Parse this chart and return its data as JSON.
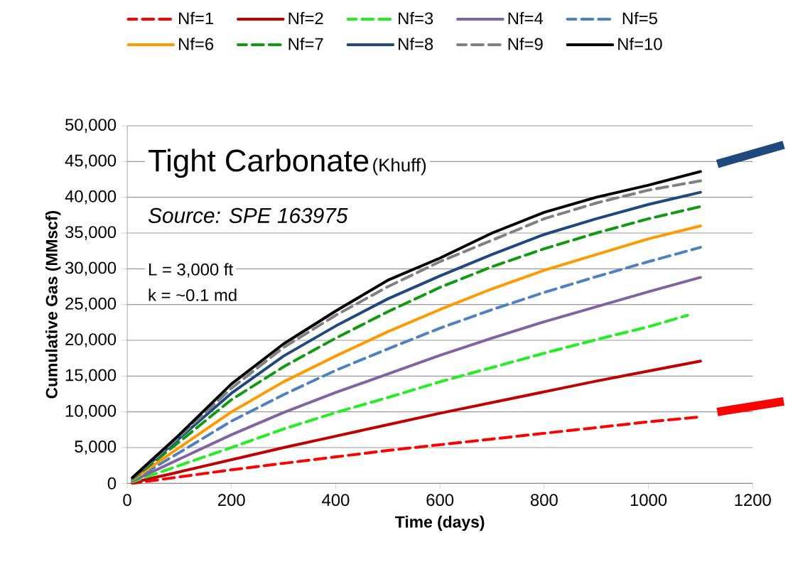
{
  "chart_data": {
    "type": "line",
    "xlabel": "Time (days)",
    "ylabel": "Cumulative Gas (MMscf)",
    "x": [
      10,
      100,
      200,
      300,
      400,
      500,
      600,
      700,
      800,
      900,
      1000,
      1100
    ],
    "series": [
      {
        "name": "Nf=1",
        "color": "#ff0000",
        "line_style": "dashed",
        "values": [
          0,
          900,
          1900,
          2800,
          3700,
          4600,
          5400,
          6200,
          7000,
          7800,
          8600,
          9300
        ]
      },
      {
        "name": "Nf=2",
        "color": "#c00000",
        "line_style": "solid",
        "values": [
          100,
          1600,
          3300,
          5000,
          6600,
          8200,
          9800,
          11300,
          12800,
          14300,
          15700,
          17100
        ]
      },
      {
        "name": "Nf=3",
        "color": "#22ee22",
        "line_style": "dashed",
        "x": [
          10,
          100,
          200,
          300,
          400,
          500,
          600,
          700,
          800,
          900,
          1000,
          1075
        ],
        "values": [
          200,
          2500,
          5000,
          7600,
          9900,
          12000,
          14200,
          16200,
          18200,
          20100,
          21900,
          23500
        ]
      },
      {
        "name": "Nf=4",
        "color": "#8064a2",
        "line_style": "solid",
        "values": [
          300,
          3400,
          6800,
          9900,
          12700,
          15300,
          17900,
          20300,
          22600,
          24700,
          26800,
          28800
        ]
      },
      {
        "name": "Nf=5",
        "color": "#4f81bd",
        "line_style": "dashed",
        "values": [
          400,
          4300,
          8700,
          12400,
          15800,
          18800,
          21700,
          24300,
          26700,
          28900,
          31000,
          33000
        ]
      },
      {
        "name": "Nf=6",
        "color": "#ff9900",
        "line_style": "solid",
        "values": [
          500,
          5000,
          10000,
          14200,
          17800,
          21200,
          24300,
          27200,
          29800,
          32000,
          34200,
          36000
        ]
      },
      {
        "name": "Nf=7",
        "color": "#119911",
        "line_style": "dashed",
        "values": [
          600,
          5800,
          11700,
          16300,
          20300,
          24000,
          27400,
          30300,
          32800,
          35000,
          37000,
          38700
        ]
      },
      {
        "name": "Nf=8",
        "color": "#1f497d",
        "line_style": "solid",
        "values": [
          700,
          6300,
          12600,
          17800,
          22000,
          25800,
          29000,
          32000,
          34800,
          37000,
          39000,
          40700
        ]
      },
      {
        "name": "Nf=9",
        "color": "#808080",
        "line_style": "dashed",
        "values": [
          700,
          6500,
          13300,
          19000,
          23500,
          27500,
          31000,
          34000,
          37000,
          39200,
          41000,
          42300
        ]
      },
      {
        "name": "Nf=10",
        "color": "#000000",
        "line_style": "solid",
        "values": [
          800,
          6800,
          13900,
          19500,
          24100,
          28400,
          31500,
          35000,
          37900,
          40000,
          41700,
          43600
        ]
      }
    ],
    "xlim": [
      0,
      1200
    ],
    "xticks": [
      0,
      200,
      400,
      600,
      800,
      1000,
      1200
    ],
    "ylim": [
      0,
      50000
    ],
    "yticks": [
      0,
      {
        "value": 5000,
        "label": "5,000"
      },
      {
        "value": 10000,
        "label": "10,000"
      },
      {
        "value": 15000,
        "label": "15,000"
      },
      {
        "value": 20000,
        "label": "20,000"
      },
      {
        "value": 25000,
        "label": "25,000"
      },
      {
        "value": 30000,
        "label": "30,000"
      },
      {
        "value": 35000,
        "label": "35,000"
      },
      {
        "value": 40000,
        "label": "40,000"
      },
      {
        "value": 45000,
        "label": "45,000"
      },
      {
        "value": 50000,
        "label": "50,000"
      }
    ],
    "grid": "y",
    "legend": "top",
    "marker": "none",
    "annotations": [
      "Tight Carbonate",
      "(Khuff)",
      "Source:  SPE 163975",
      "L = 3,000 ft",
      "k = ~0.1 md"
    ]
  }
}
